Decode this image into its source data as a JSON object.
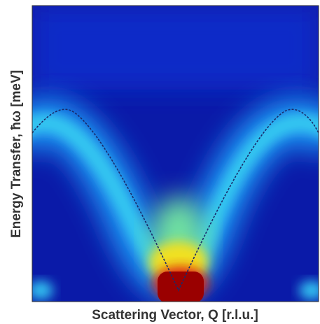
{
  "chart_data": {
    "type": "heatmap",
    "xlabel": "Scattering Vector, Q [r.l.u.]",
    "ylabel": "Energy Transfer, ħω [meV]"
  }
}
